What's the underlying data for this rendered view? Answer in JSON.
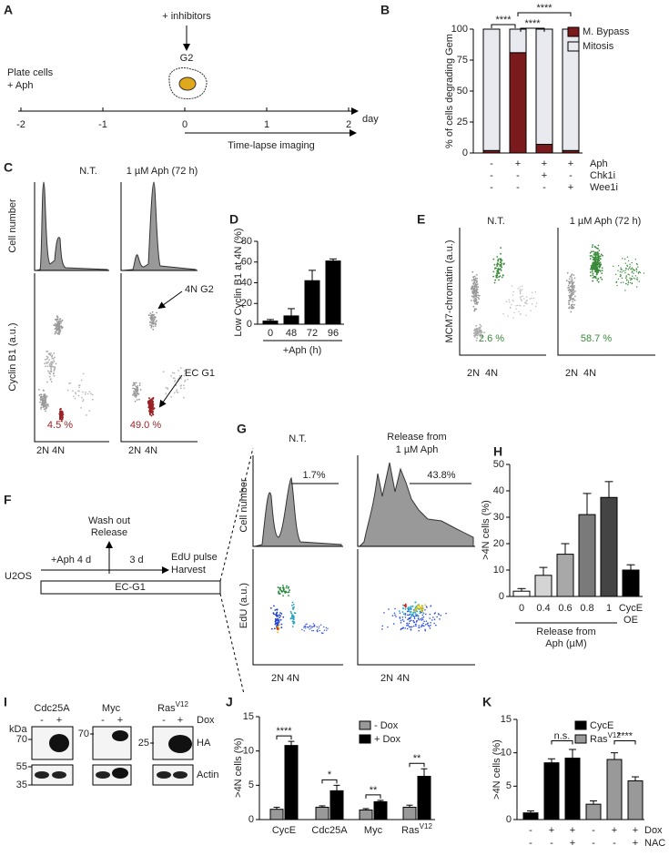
{
  "panels": {
    "A": {
      "label": "A",
      "treatment": "+ inhibitors",
      "phase": "G2",
      "plating": [
        "Plate cells",
        "+ Aph"
      ],
      "ticks": [
        -2,
        -1,
        0,
        1,
        2
      ],
      "unit": "day",
      "imaging": "Time-lapse imaging"
    },
    "B": {
      "label": "B",
      "type": "bar",
      "stacked": true,
      "ylabel": "% of cells degrading Gem",
      "ylim": [
        0,
        100
      ],
      "yticks": [
        0,
        25,
        50,
        75,
        100
      ],
      "series": [
        {
          "name": "M. Bypass",
          "color": "#7b1a1c",
          "values": [
            2,
            81,
            7,
            2
          ]
        },
        {
          "name": "Mitosis",
          "color": "#e9e9f0",
          "values": [
            98,
            19,
            93,
            98
          ]
        }
      ],
      "conditions": [
        {
          "name": "Aph",
          "signs": [
            "-",
            "+",
            "+",
            "+"
          ]
        },
        {
          "name": "Chk1i",
          "signs": [
            "-",
            "-",
            "+",
            "-"
          ]
        },
        {
          "name": "Wee1i",
          "signs": [
            "-",
            "-",
            "-",
            "+"
          ]
        }
      ],
      "significance": [
        "****",
        "****",
        "****"
      ]
    },
    "C": {
      "label": "C",
      "columns": [
        "N.T.",
        "1 µM Aph (72 h)"
      ],
      "ylabels": [
        "Cell number",
        "Cyclin B1 (a.u.)"
      ],
      "gates": [
        "4.5 %",
        "49.0 %"
      ],
      "annotations": [
        "4N G2",
        "EC G1"
      ],
      "xticks": [
        "2N",
        "4N"
      ],
      "gate_color": "#9b2226"
    },
    "D": {
      "label": "D",
      "type": "bar",
      "ylabel": "Low Cyclin B1 at 4N  (%)",
      "categories": [
        "0",
        "48",
        "72",
        "96"
      ],
      "xlabel": "+Aph (h)",
      "values": [
        3,
        8,
        42,
        61
      ],
      "errors": [
        1.5,
        7,
        10,
        2
      ],
      "color": "#000000",
      "ylim": [
        0,
        80
      ],
      "yticks": [
        0,
        20,
        40,
        60,
        80
      ]
    },
    "E": {
      "label": "E",
      "columns": [
        "N.T.",
        "1 µM Aph (72 h)"
      ],
      "ylabel": "MCM7-chromatin (a.u.)",
      "gates": [
        "2.6 %",
        "58.7 %"
      ],
      "xticks": [
        "2N",
        "4N"
      ],
      "gate_color": "#3a8a3a"
    },
    "F": {
      "label": "F",
      "washout": [
        "Wash out",
        "Release"
      ],
      "treatment": "+Aph 4 d",
      "recovery": "3 d",
      "harvest": [
        "EdU pulse",
        "Harvest"
      ],
      "cell_line": "U2OS",
      "state": "EC-G1"
    },
    "G": {
      "label": "G",
      "columns": [
        [
          "N.T."
        ],
        [
          "Release from",
          "1 µM Aph"
        ]
      ],
      "gates": [
        "1.7%",
        "43.8%"
      ],
      "ylabels": [
        "Cell number",
        "EdU (a.u.)"
      ],
      "xticks": [
        "2N",
        "4N"
      ]
    },
    "H": {
      "label": "H",
      "type": "bar",
      "ylabel": ">4N cells (%)",
      "categories": [
        [
          "0"
        ],
        [
          "0.4"
        ],
        [
          "0.6"
        ],
        [
          "0.8"
        ],
        [
          "1"
        ],
        [
          "CycE",
          "OE"
        ]
      ],
      "xlabel": [
        "Release from",
        "Aph (µM)"
      ],
      "values": [
        2,
        8,
        16,
        31,
        37.5,
        10
      ],
      "errors": [
        1,
        3,
        4,
        8,
        6,
        2
      ],
      "colors": [
        "#ffffff",
        "#d4d4d4",
        "#a8a8a8",
        "#7a7a7a",
        "#444444",
        "#000000"
      ],
      "ylim": [
        0,
        50
      ],
      "yticks": [
        0,
        10,
        20,
        30,
        40,
        50
      ]
    },
    "I": {
      "label": "I",
      "targets": [
        {
          "text": "Cdc25A"
        },
        {
          "text": "Myc"
        },
        {
          "text": "Ras",
          "sup": "V12"
        }
      ],
      "unit": "kDa",
      "signs": [
        "-",
        "+"
      ],
      "inducer": "Dox",
      "bands": [
        "HA",
        "Actin"
      ],
      "markers": [
        [
          70,
          55,
          35
        ],
        [
          70
        ],
        [
          25
        ]
      ]
    },
    "J": {
      "label": "J",
      "type": "bar",
      "ylabel": ">4N cells (%)",
      "categories": [
        {
          "text": "CycE"
        },
        {
          "text": "Cdc25A"
        },
        {
          "text": "Myc"
        },
        {
          "text": "Ras",
          "sup": "V12"
        }
      ],
      "series": [
        {
          "name": "- Dox",
          "color": "#999999",
          "values": [
            1.5,
            1.8,
            1.4,
            1.8
          ],
          "errors": [
            0.3,
            0.2,
            0.2,
            0.3
          ]
        },
        {
          "name": "+ Dox",
          "color": "#000000",
          "values": [
            10.8,
            4.2,
            2.6,
            6.3
          ],
          "errors": [
            0.6,
            0.8,
            0.2,
            1.1
          ]
        }
      ],
      "significance": [
        "****",
        "*",
        "**",
        "**"
      ],
      "ylim": [
        0,
        15
      ],
      "yticks": [
        0,
        5,
        10,
        15
      ]
    },
    "K": {
      "label": "K",
      "type": "bar",
      "ylabel": ">4N cells (%)",
      "series": [
        {
          "name": {
            "text": "CycE"
          },
          "color": "#000000",
          "values": [
            1,
            8.5,
            9.2
          ],
          "errors": [
            0.3,
            0.6,
            1.3
          ]
        },
        {
          "name": {
            "text": "Ras",
            "sup": "V12"
          },
          "color": "#999999",
          "values": [
            2.3,
            9,
            5.8
          ],
          "errors": [
            0.5,
            1,
            0.6
          ]
        }
      ],
      "conditions": [
        {
          "name": "Dox",
          "signs": [
            "-",
            "+",
            "+",
            "-",
            "+",
            "+"
          ]
        },
        {
          "name": "NAC",
          "signs": [
            "-",
            "-",
            "+",
            "-",
            "-",
            "+"
          ]
        }
      ],
      "significance": [
        "n.s.",
        "****"
      ],
      "ylim": [
        0,
        15
      ],
      "yticks": [
        0,
        5,
        10,
        15
      ]
    }
  }
}
